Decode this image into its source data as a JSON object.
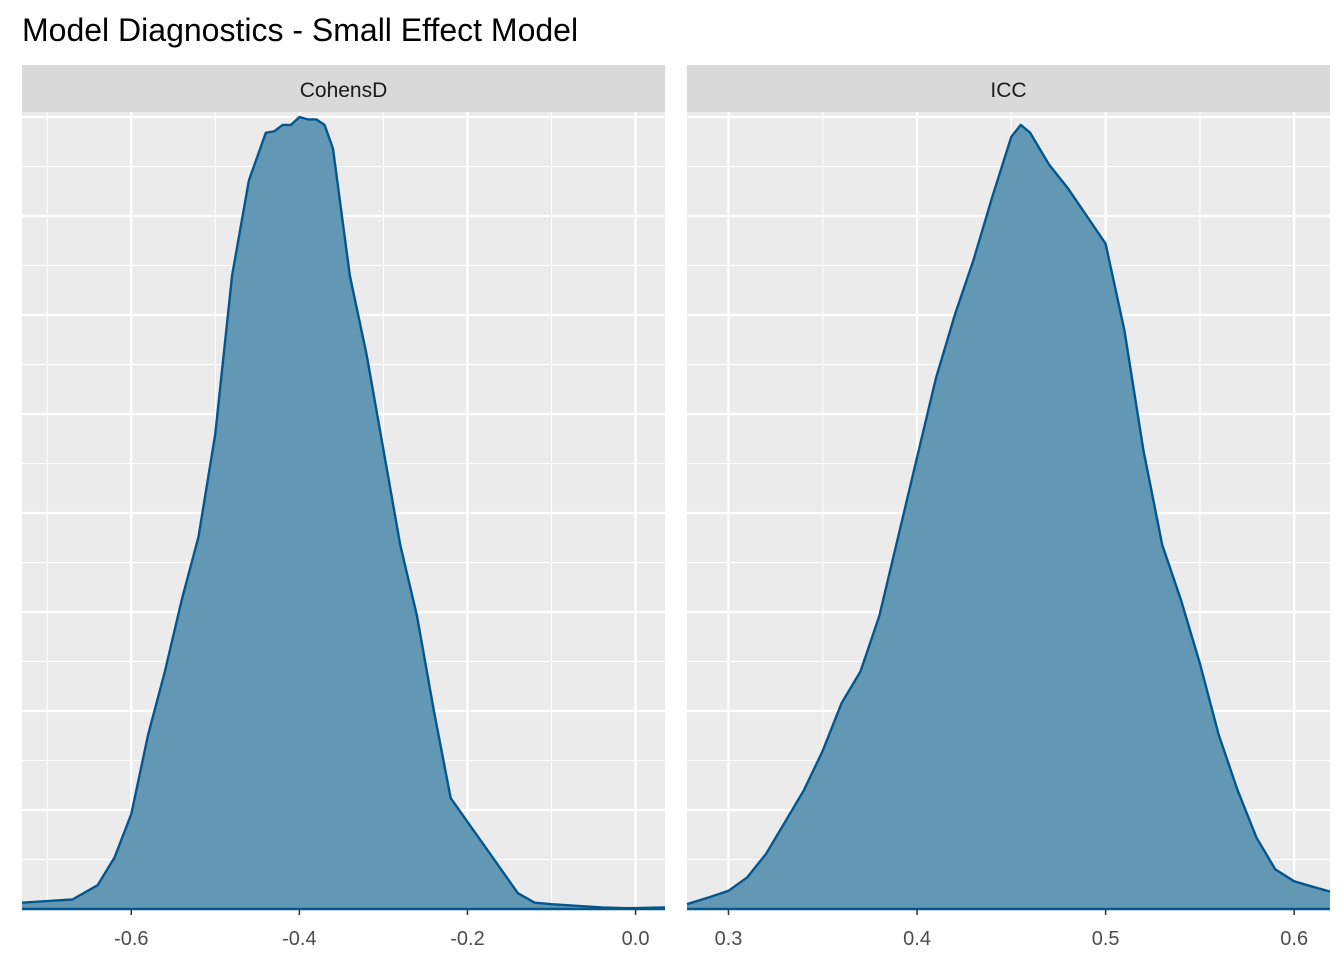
{
  "title": "Model Diagnostics - Small Effect Model",
  "colors": {
    "panel_background": "#ebebeb",
    "strip_background": "#d9d9d9",
    "grid": "#ffffff",
    "density_fill": "#6398b5",
    "density_line": "#05568d",
    "tick_text": "#4d4d4d"
  },
  "chart_data": [
    {
      "type": "area",
      "subtype": "density",
      "facet": "CohensD",
      "xlim": [
        -0.73,
        0.035
      ],
      "ylim": [
        0,
        1
      ],
      "x_ticks": [
        -0.6,
        -0.4,
        -0.2,
        0.0
      ],
      "x_tick_labels": [
        "-0.6",
        "-0.4",
        "-0.2",
        "0.0"
      ],
      "y_tick_labels_shown": false,
      "grid": true,
      "x": [
        -0.73,
        -0.7,
        -0.67,
        -0.64,
        -0.62,
        -0.6,
        -0.58,
        -0.56,
        -0.54,
        -0.52,
        -0.5,
        -0.48,
        -0.46,
        -0.44,
        -0.43,
        -0.42,
        -0.41,
        -0.4,
        -0.39,
        -0.38,
        -0.37,
        -0.36,
        -0.34,
        -0.32,
        -0.3,
        -0.28,
        -0.26,
        -0.24,
        -0.22,
        -0.2,
        -0.18,
        -0.16,
        -0.14,
        -0.12,
        -0.1,
        -0.07,
        -0.04,
        -0.01,
        0.035
      ],
      "y": [
        0.008,
        0.01,
        0.012,
        0.03,
        0.065,
        0.12,
        0.22,
        0.3,
        0.39,
        0.47,
        0.6,
        0.8,
        0.92,
        0.98,
        0.982,
        0.99,
        0.99,
        1.0,
        0.997,
        0.997,
        0.99,
        0.96,
        0.8,
        0.7,
        0.58,
        0.46,
        0.37,
        0.25,
        0.14,
        0.11,
        0.08,
        0.05,
        0.02,
        0.008,
        0.006,
        0.004,
        0.002,
        0.001,
        0.002
      ]
    },
    {
      "type": "area",
      "subtype": "density",
      "facet": "ICC",
      "xlim": [
        0.278,
        0.619
      ],
      "ylim": [
        0,
        1
      ],
      "x_ticks": [
        0.3,
        0.4,
        0.5,
        0.6
      ],
      "x_tick_labels": [
        "0.3",
        "0.4",
        "0.5",
        "0.6"
      ],
      "y_tick_labels_shown": false,
      "grid": true,
      "x": [
        0.278,
        0.29,
        0.3,
        0.31,
        0.32,
        0.33,
        0.34,
        0.35,
        0.36,
        0.37,
        0.38,
        0.39,
        0.4,
        0.41,
        0.42,
        0.43,
        0.44,
        0.45,
        0.455,
        0.46,
        0.47,
        0.48,
        0.49,
        0.5,
        0.51,
        0.52,
        0.53,
        0.54,
        0.55,
        0.56,
        0.57,
        0.58,
        0.59,
        0.6,
        0.61,
        0.619
      ],
      "y": [
        0.006,
        0.015,
        0.023,
        0.04,
        0.07,
        0.11,
        0.15,
        0.2,
        0.26,
        0.3,
        0.37,
        0.47,
        0.57,
        0.67,
        0.75,
        0.82,
        0.9,
        0.975,
        0.99,
        0.98,
        0.94,
        0.91,
        0.875,
        0.84,
        0.73,
        0.58,
        0.46,
        0.39,
        0.31,
        0.22,
        0.15,
        0.09,
        0.05,
        0.035,
        0.028,
        0.022
      ]
    }
  ]
}
